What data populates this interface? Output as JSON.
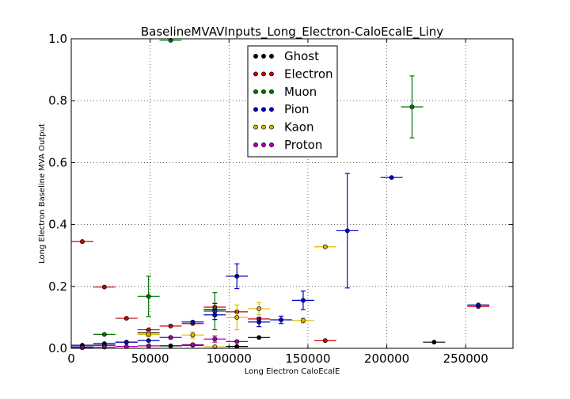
{
  "chart_data": {
    "type": "scatter",
    "title": "BaselineMVAVInputs_Long_Electron-CaloEcalE_Liny",
    "xlabel": "Long Electron CaloEcalE",
    "ylabel": "Long Electron Baseline MVA Output",
    "xlim": [
      0,
      280000
    ],
    "ylim": [
      0.0,
      1.0
    ],
    "x_ticks": [
      0,
      50000,
      100000,
      150000,
      200000,
      250000
    ],
    "x_tick_labels": [
      "0",
      "50000",
      "100000",
      "150000",
      "200000",
      "250000"
    ],
    "y_ticks": [
      0.0,
      0.2,
      0.4,
      0.6,
      0.8,
      1.0
    ],
    "y_tick_labels": [
      "0.0",
      "0.2",
      "0.4",
      "0.6",
      "0.8",
      "1.0"
    ],
    "grid": true,
    "legend_position": "top-center",
    "series": [
      {
        "name": "Ghost",
        "color": "#000000",
        "points": [
          {
            "x": 7000,
            "y": 0.01,
            "xerr": 7000,
            "yerr": 0.003
          },
          {
            "x": 21000,
            "y": 0.015,
            "xerr": 7000,
            "yerr": 0.003
          },
          {
            "x": 35000,
            "y": 0.02,
            "xerr": 7000,
            "yerr": 0.004
          },
          {
            "x": 49000,
            "y": 0.05,
            "xerr": 7000,
            "yerr": 0.008
          },
          {
            "x": 63000,
            "y": 0.008,
            "xerr": 7000,
            "yerr": 0.003
          },
          {
            "x": 77000,
            "y": 0.01,
            "xerr": 7000,
            "yerr": 0.003
          },
          {
            "x": 91000,
            "y": 0.125,
            "xerr": 7000,
            "yerr": 0.02
          },
          {
            "x": 105000,
            "y": 0.006,
            "xerr": 7000,
            "yerr": 0.003
          },
          {
            "x": 119000,
            "y": 0.035,
            "xerr": 7000,
            "yerr": 0.004
          },
          {
            "x": 230000,
            "y": 0.02,
            "xerr": 7000,
            "yerr": 0.004
          }
        ]
      },
      {
        "name": "Electron",
        "color": "#cc0000",
        "points": [
          {
            "x": 7000,
            "y": 0.345,
            "xerr": 7000,
            "yerr": 0.003
          },
          {
            "x": 21000,
            "y": 0.198,
            "xerr": 7000,
            "yerr": 0.003
          },
          {
            "x": 35000,
            "y": 0.097,
            "xerr": 7000,
            "yerr": 0.003
          },
          {
            "x": 49000,
            "y": 0.06,
            "xerr": 7000,
            "yerr": 0.003
          },
          {
            "x": 63000,
            "y": 0.072,
            "xerr": 7000,
            "yerr": 0.003
          },
          {
            "x": 77000,
            "y": 0.08,
            "xerr": 7000,
            "yerr": 0.003
          },
          {
            "x": 91000,
            "y": 0.133,
            "xerr": 7000,
            "yerr": 0.004
          },
          {
            "x": 105000,
            "y": 0.118,
            "xerr": 7000,
            "yerr": 0.005
          },
          {
            "x": 119000,
            "y": 0.095,
            "xerr": 7000,
            "yerr": 0.005
          },
          {
            "x": 161000,
            "y": 0.025,
            "xerr": 7000,
            "yerr": 0.004
          },
          {
            "x": 258000,
            "y": 0.135,
            "xerr": 7000,
            "yerr": 0.003
          }
        ]
      },
      {
        "name": "Muon",
        "color": "#007700",
        "points": [
          {
            "x": 21000,
            "y": 0.045,
            "xerr": 7000,
            "yerr": 0.004
          },
          {
            "x": 49000,
            "y": 0.168,
            "xerr": 7000,
            "yerr": 0.065
          },
          {
            "x": 63000,
            "y": 0.995,
            "xerr": 7000,
            "yerr": 0.003
          },
          {
            "x": 91000,
            "y": 0.12,
            "xerr": 7000,
            "yerr": 0.06
          },
          {
            "x": 216000,
            "y": 0.78,
            "xerr": 7000,
            "yerr": 0.1
          }
        ]
      },
      {
        "name": "Pion",
        "color": "#0000cc",
        "points": [
          {
            "x": 7000,
            "y": 0.005,
            "xerr": 7000,
            "yerr": 0.002
          },
          {
            "x": 21000,
            "y": 0.01,
            "xerr": 7000,
            "yerr": 0.002
          },
          {
            "x": 35000,
            "y": 0.02,
            "xerr": 7000,
            "yerr": 0.003
          },
          {
            "x": 49000,
            "y": 0.025,
            "xerr": 7000,
            "yerr": 0.003
          },
          {
            "x": 63000,
            "y": 0.035,
            "xerr": 7000,
            "yerr": 0.004
          },
          {
            "x": 77000,
            "y": 0.085,
            "xerr": 7000,
            "yerr": 0.005
          },
          {
            "x": 91000,
            "y": 0.108,
            "xerr": 7000,
            "yerr": 0.015
          },
          {
            "x": 105000,
            "y": 0.233,
            "xerr": 7000,
            "yerr": 0.04
          },
          {
            "x": 119000,
            "y": 0.085,
            "xerr": 7000,
            "yerr": 0.015
          },
          {
            "x": 133000,
            "y": 0.092,
            "xerr": 7000,
            "yerr": 0.012
          },
          {
            "x": 147000,
            "y": 0.155,
            "xerr": 7000,
            "yerr": 0.03
          },
          {
            "x": 175000,
            "y": 0.38,
            "xerr": 7000,
            "yerr": 0.185
          },
          {
            "x": 203000,
            "y": 0.552,
            "xerr": 7000,
            "yerr": 0.003
          },
          {
            "x": 258000,
            "y": 0.14,
            "xerr": 7000,
            "yerr": 0.003
          }
        ]
      },
      {
        "name": "Kaon",
        "color": "#ddbb00",
        "points": [
          {
            "x": 49000,
            "y": 0.045,
            "xerr": 7000,
            "yerr": 0.008
          },
          {
            "x": 77000,
            "y": 0.043,
            "xerr": 7000,
            "yerr": 0.01
          },
          {
            "x": 91000,
            "y": 0.005,
            "xerr": 7000,
            "yerr": 0.003
          },
          {
            "x": 105000,
            "y": 0.1,
            "xerr": 7000,
            "yerr": 0.04
          },
          {
            "x": 119000,
            "y": 0.128,
            "xerr": 7000,
            "yerr": 0.02
          },
          {
            "x": 147000,
            "y": 0.09,
            "xerr": 7000,
            "yerr": 0.008
          },
          {
            "x": 161000,
            "y": 0.328,
            "xerr": 7000,
            "yerr": 0.003
          }
        ]
      },
      {
        "name": "Proton",
        "color": "#aa00aa",
        "points": [
          {
            "x": 7000,
            "y": 0.002,
            "xerr": 7000,
            "yerr": 0.002
          },
          {
            "x": 21000,
            "y": 0.004,
            "xerr": 7000,
            "yerr": 0.002
          },
          {
            "x": 35000,
            "y": 0.006,
            "xerr": 7000,
            "yerr": 0.002
          },
          {
            "x": 49000,
            "y": 0.008,
            "xerr": 7000,
            "yerr": 0.002
          },
          {
            "x": 63000,
            "y": 0.035,
            "xerr": 7000,
            "yerr": 0.004
          },
          {
            "x": 77000,
            "y": 0.012,
            "xerr": 7000,
            "yerr": 0.003
          },
          {
            "x": 91000,
            "y": 0.03,
            "xerr": 7000,
            "yerr": 0.01
          },
          {
            "x": 105000,
            "y": 0.022,
            "xerr": 7000,
            "yerr": 0.005
          }
        ]
      }
    ]
  }
}
